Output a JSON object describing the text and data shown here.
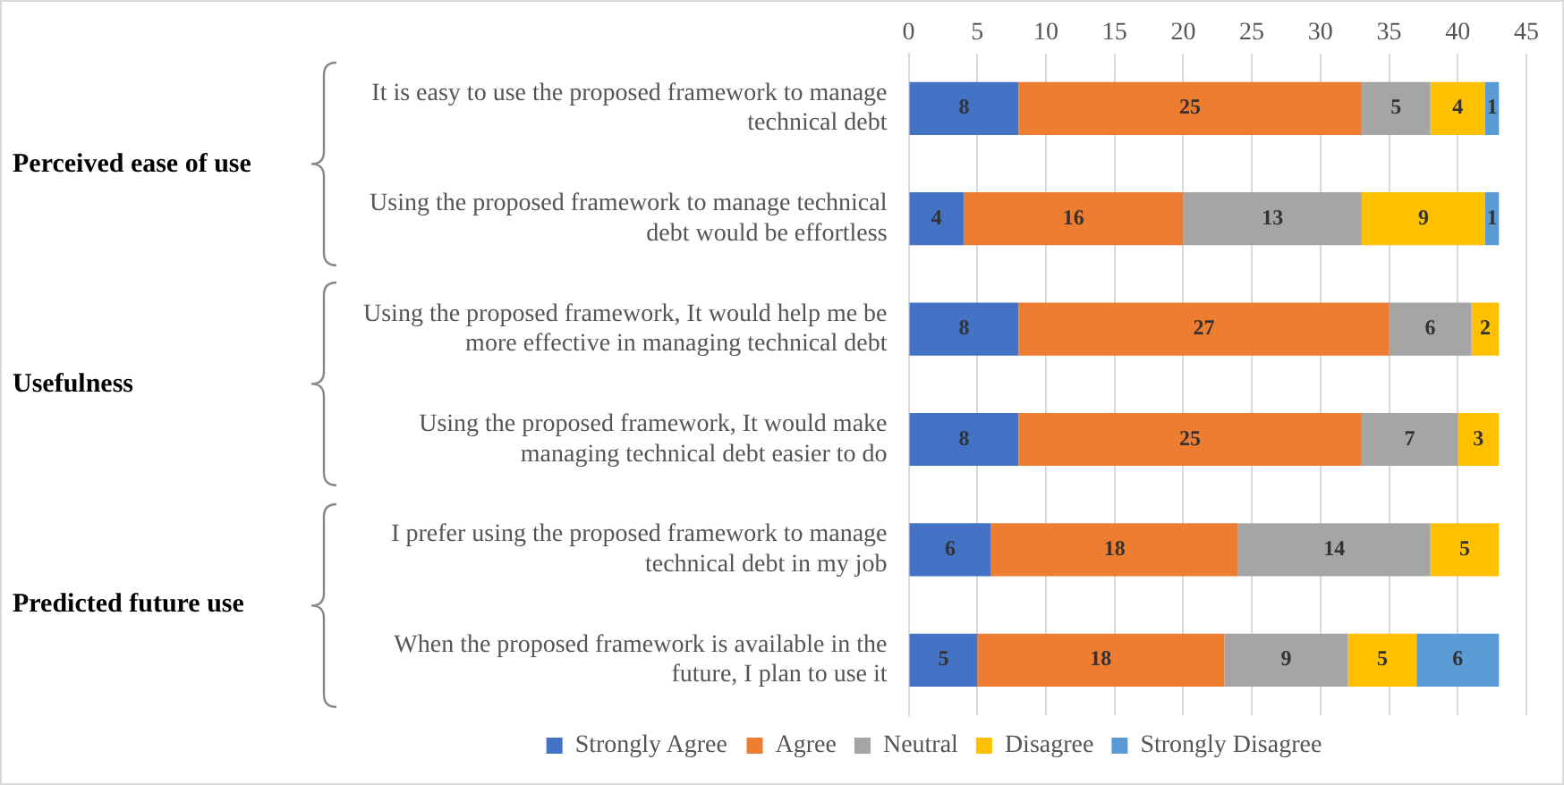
{
  "chart_data": {
    "type": "bar",
    "orientation": "horizontal",
    "stacked": true,
    "data_labels": true,
    "grid": "x",
    "legend": "bottom",
    "categories": [
      "It is easy to use the proposed framework to manage technical debt",
      "Using the proposed framework to manage technical debt would be effortless",
      "Using the proposed framework, It would help me be more effective in managing technical debt",
      "Using the proposed framework, It would make managing technical debt easier to do",
      "I prefer using the proposed framework to manage technical debt in my job",
      "When the proposed framework is available in the future, I plan to use it"
    ],
    "series": [
      {
        "name": "Strongly Agree",
        "color": "#4472c4",
        "values": [
          8,
          4,
          8,
          8,
          6,
          5
        ]
      },
      {
        "name": "Agree",
        "color": "#ed7d31",
        "values": [
          25,
          16,
          27,
          25,
          18,
          18
        ]
      },
      {
        "name": "Neutral",
        "color": "#a5a5a5",
        "values": [
          5,
          13,
          6,
          7,
          14,
          9
        ]
      },
      {
        "name": "Disagree",
        "color": "#ffc000",
        "values": [
          4,
          9,
          2,
          3,
          5,
          5
        ]
      },
      {
        "name": "Strongly Disagree",
        "color": "#5b9bd5",
        "values": [
          1,
          1,
          null,
          null,
          null,
          6
        ]
      }
    ],
    "xlim": [
      0,
      45
    ],
    "xticks": [
      0,
      5,
      10,
      15,
      20,
      25,
      30,
      35,
      40,
      45
    ],
    "annotations": [
      "Perceived ease of use",
      "Usefulness",
      "Predicted future use"
    ]
  }
}
